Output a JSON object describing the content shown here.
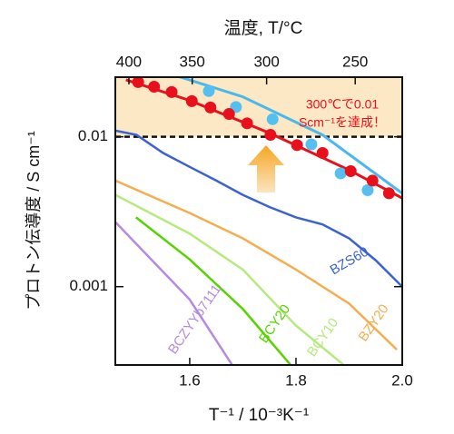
{
  "chart_data": {
    "type": "line",
    "xlabel": "T⁻¹ / 10⁻³K⁻¹",
    "ylabel": "プロトン伝導度  / S cm⁻¹",
    "x2label": "温度, T/°C",
    "xlim": [
      1.46,
      2.0
    ],
    "xticks": [
      1.6,
      1.8,
      {
        "value": 2,
        "label": "2.0"
      }
    ],
    "ylim": [
      0.0003,
      0.025
    ],
    "yticks": [
      0.001,
      0.01
    ],
    "yscale": "log",
    "x2ticks": [
      400,
      350,
      300,
      250
    ],
    "threshold": 0.01,
    "annotations": [
      "300℃で0.01",
      "Scm⁻¹を達成！"
    ],
    "series": [
      {
        "name": "BZS60",
        "color": "#3b63cf",
        "x": [
          1.46,
          1.5,
          1.55,
          1.6,
          1.65,
          1.7,
          1.75,
          1.8,
          1.85,
          1.9,
          1.95,
          2.0
        ],
        "values": [
          0.011,
          0.0103,
          0.0078,
          0.0063,
          0.0051,
          0.0041,
          0.0034,
          0.0029,
          0.0026,
          0.0021,
          0.0015,
          0.001
        ]
      },
      {
        "name": "BZY20",
        "color": "#f5ad4e",
        "x": [
          1.46,
          1.6,
          1.7,
          1.8,
          1.9,
          1.99
        ],
        "values": [
          0.0051,
          0.0031,
          0.0021,
          0.0013,
          0.00077,
          0.00038
        ]
      },
      {
        "name": "BCY10",
        "color": "#b5ea7c",
        "x": [
          1.46,
          1.6,
          1.7,
          1.8,
          1.89
        ],
        "values": [
          0.0041,
          0.00226,
          0.0013,
          0.00055,
          0.0003
        ]
      },
      {
        "name": "BCY20",
        "color": "#55d400",
        "x": [
          1.499,
          1.6,
          1.7,
          1.79
        ],
        "values": [
          0.0029,
          0.00152,
          0.00071,
          0.0003
        ]
      },
      {
        "name": "BCZYYb7111",
        "color": "#b58ae0",
        "x": [
          1.46,
          1.6,
          1.68
        ],
        "values": [
          0.0027,
          0.00082,
          0.0003
        ]
      },
      {
        "color": "#4bb8ec",
        "x": [
          1.568,
          1.7,
          1.85,
          2.0
        ],
        "values": [
          0.026,
          0.0185,
          0.0103,
          0.0042
        ]
      },
      {
        "color": "#e8101a",
        "x": [
          1.48,
          1.6,
          1.75,
          1.9,
          2.0
        ],
        "values": [
          0.024,
          0.0175,
          0.0106,
          0.006,
          0.0039
        ]
      },
      {
        "color": "#55bff0",
        "marker": true,
        "x": [
          1.636,
          1.687,
          1.756,
          1.829,
          1.884,
          1.935
        ],
        "values": [
          0.0202,
          0.0158,
          0.0131,
          0.0089,
          0.0057,
          0.0044
        ]
      },
      {
        "color": "#e8101a",
        "marker": true,
        "x": [
          1.503,
          1.533,
          1.566,
          1.604,
          1.639,
          1.674,
          1.708,
          1.752,
          1.802,
          1.85,
          1.903,
          1.944,
          1.975
        ],
        "values": [
          0.0232,
          0.0216,
          0.0199,
          0.0173,
          0.0157,
          0.0142,
          0.0123,
          0.0103,
          0.0088,
          0.0078,
          0.0059,
          0.0051,
          0.0042
        ]
      }
    ]
  }
}
